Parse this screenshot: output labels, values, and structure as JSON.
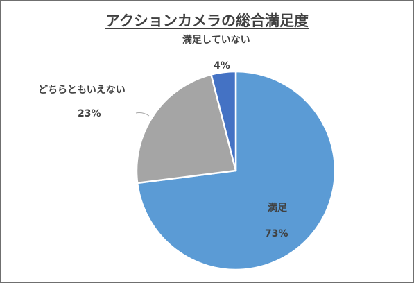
{
  "chart_data": {
    "type": "pie",
    "title": "アクションカメラの総合満足度",
    "categories": [
      "満足",
      "どちらともいえない",
      "満足していない"
    ],
    "values": [
      73,
      23,
      4
    ],
    "value_labels": [
      "73%",
      "23%",
      "4%"
    ],
    "colors": [
      "#5B9BD5",
      "#A5A5A5",
      "#4472C4"
    ],
    "legend": "none",
    "start_angle_deg": 0,
    "direction": "clockwise"
  }
}
